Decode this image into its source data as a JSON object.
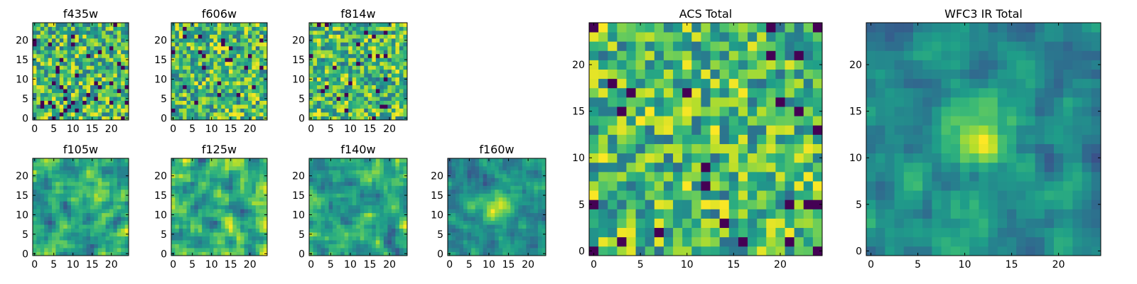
{
  "chart_data": [
    {
      "type": "heatmap",
      "title": "f435w",
      "x_ticks": [
        "0",
        "5",
        "10",
        "15",
        "20"
      ],
      "y_ticks": [
        "0",
        "5",
        "10",
        "15",
        "20"
      ],
      "xlim": [
        -0.5,
        24.5
      ],
      "ylim": [
        -0.5,
        24.5
      ],
      "grid_size": [
        25,
        25
      ],
      "colormap": "viridis",
      "pattern": "noise"
    },
    {
      "type": "heatmap",
      "title": "f606w",
      "x_ticks": [
        "0",
        "5",
        "10",
        "15",
        "20"
      ],
      "y_ticks": [
        "0",
        "5",
        "10",
        "15",
        "20"
      ],
      "xlim": [
        -0.5,
        24.5
      ],
      "ylim": [
        -0.5,
        24.5
      ],
      "grid_size": [
        25,
        25
      ],
      "colormap": "viridis",
      "pattern": "noise"
    },
    {
      "type": "heatmap",
      "title": "f814w",
      "x_ticks": [
        "0",
        "5",
        "10",
        "15",
        "20"
      ],
      "y_ticks": [
        "0",
        "5",
        "10",
        "15",
        "20"
      ],
      "xlim": [
        -0.5,
        24.5
      ],
      "ylim": [
        -0.5,
        24.5
      ],
      "grid_size": [
        25,
        25
      ],
      "colormap": "viridis",
      "pattern": "noise"
    },
    {
      "type": "heatmap",
      "title": "f105w",
      "x_ticks": [
        "0",
        "5",
        "10",
        "15",
        "20"
      ],
      "y_ticks": [
        "0",
        "5",
        "10",
        "15",
        "20"
      ],
      "xlim": [
        -0.5,
        24.5
      ],
      "ylim": [
        -0.5,
        24.5
      ],
      "grid_size": [
        25,
        25
      ],
      "colormap": "viridis",
      "pattern": "smooth"
    },
    {
      "type": "heatmap",
      "title": "f125w",
      "x_ticks": [
        "0",
        "5",
        "10",
        "15",
        "20"
      ],
      "y_ticks": [
        "0",
        "5",
        "10",
        "15",
        "20"
      ],
      "xlim": [
        -0.5,
        24.5
      ],
      "ylim": [
        -0.5,
        24.5
      ],
      "grid_size": [
        25,
        25
      ],
      "colormap": "viridis",
      "pattern": "smooth"
    },
    {
      "type": "heatmap",
      "title": "f140w",
      "x_ticks": [
        "0",
        "5",
        "10",
        "15",
        "20"
      ],
      "y_ticks": [
        "0",
        "5",
        "10",
        "15",
        "20"
      ],
      "xlim": [
        -0.5,
        24.5
      ],
      "ylim": [
        -0.5,
        24.5
      ],
      "grid_size": [
        25,
        25
      ],
      "colormap": "viridis",
      "pattern": "smooth"
    },
    {
      "type": "heatmap",
      "title": "f160w",
      "x_ticks": [
        "0",
        "5",
        "10",
        "15",
        "20"
      ],
      "y_ticks": [
        "0",
        "5",
        "10",
        "15",
        "20"
      ],
      "xlim": [
        -0.5,
        24.5
      ],
      "ylim": [
        -0.5,
        24.5
      ],
      "grid_size": [
        25,
        25
      ],
      "colormap": "viridis",
      "pattern": "smooth",
      "bright_blob_center": [
        12,
        12
      ]
    },
    {
      "type": "heatmap",
      "title": "ACS Total",
      "x_ticks": [
        "0",
        "5",
        "10",
        "15",
        "20"
      ],
      "y_ticks": [
        "0",
        "5",
        "10",
        "15",
        "20"
      ],
      "xlim": [
        -0.5,
        24.5
      ],
      "ylim": [
        -0.5,
        24.5
      ],
      "grid_size": [
        25,
        25
      ],
      "colormap": "viridis",
      "pattern": "noise"
    },
    {
      "type": "heatmap",
      "title": "WFC3 IR Total",
      "x_ticks": [
        "0",
        "5",
        "10",
        "15",
        "20"
      ],
      "y_ticks": [
        "0",
        "5",
        "10",
        "15",
        "20"
      ],
      "xlim": [
        -0.5,
        24.5
      ],
      "ylim": [
        -0.5,
        24.5
      ],
      "grid_size": [
        25,
        25
      ],
      "colormap": "viridis",
      "pattern": "smooth",
      "bright_blob_center": [
        12,
        12
      ]
    }
  ]
}
